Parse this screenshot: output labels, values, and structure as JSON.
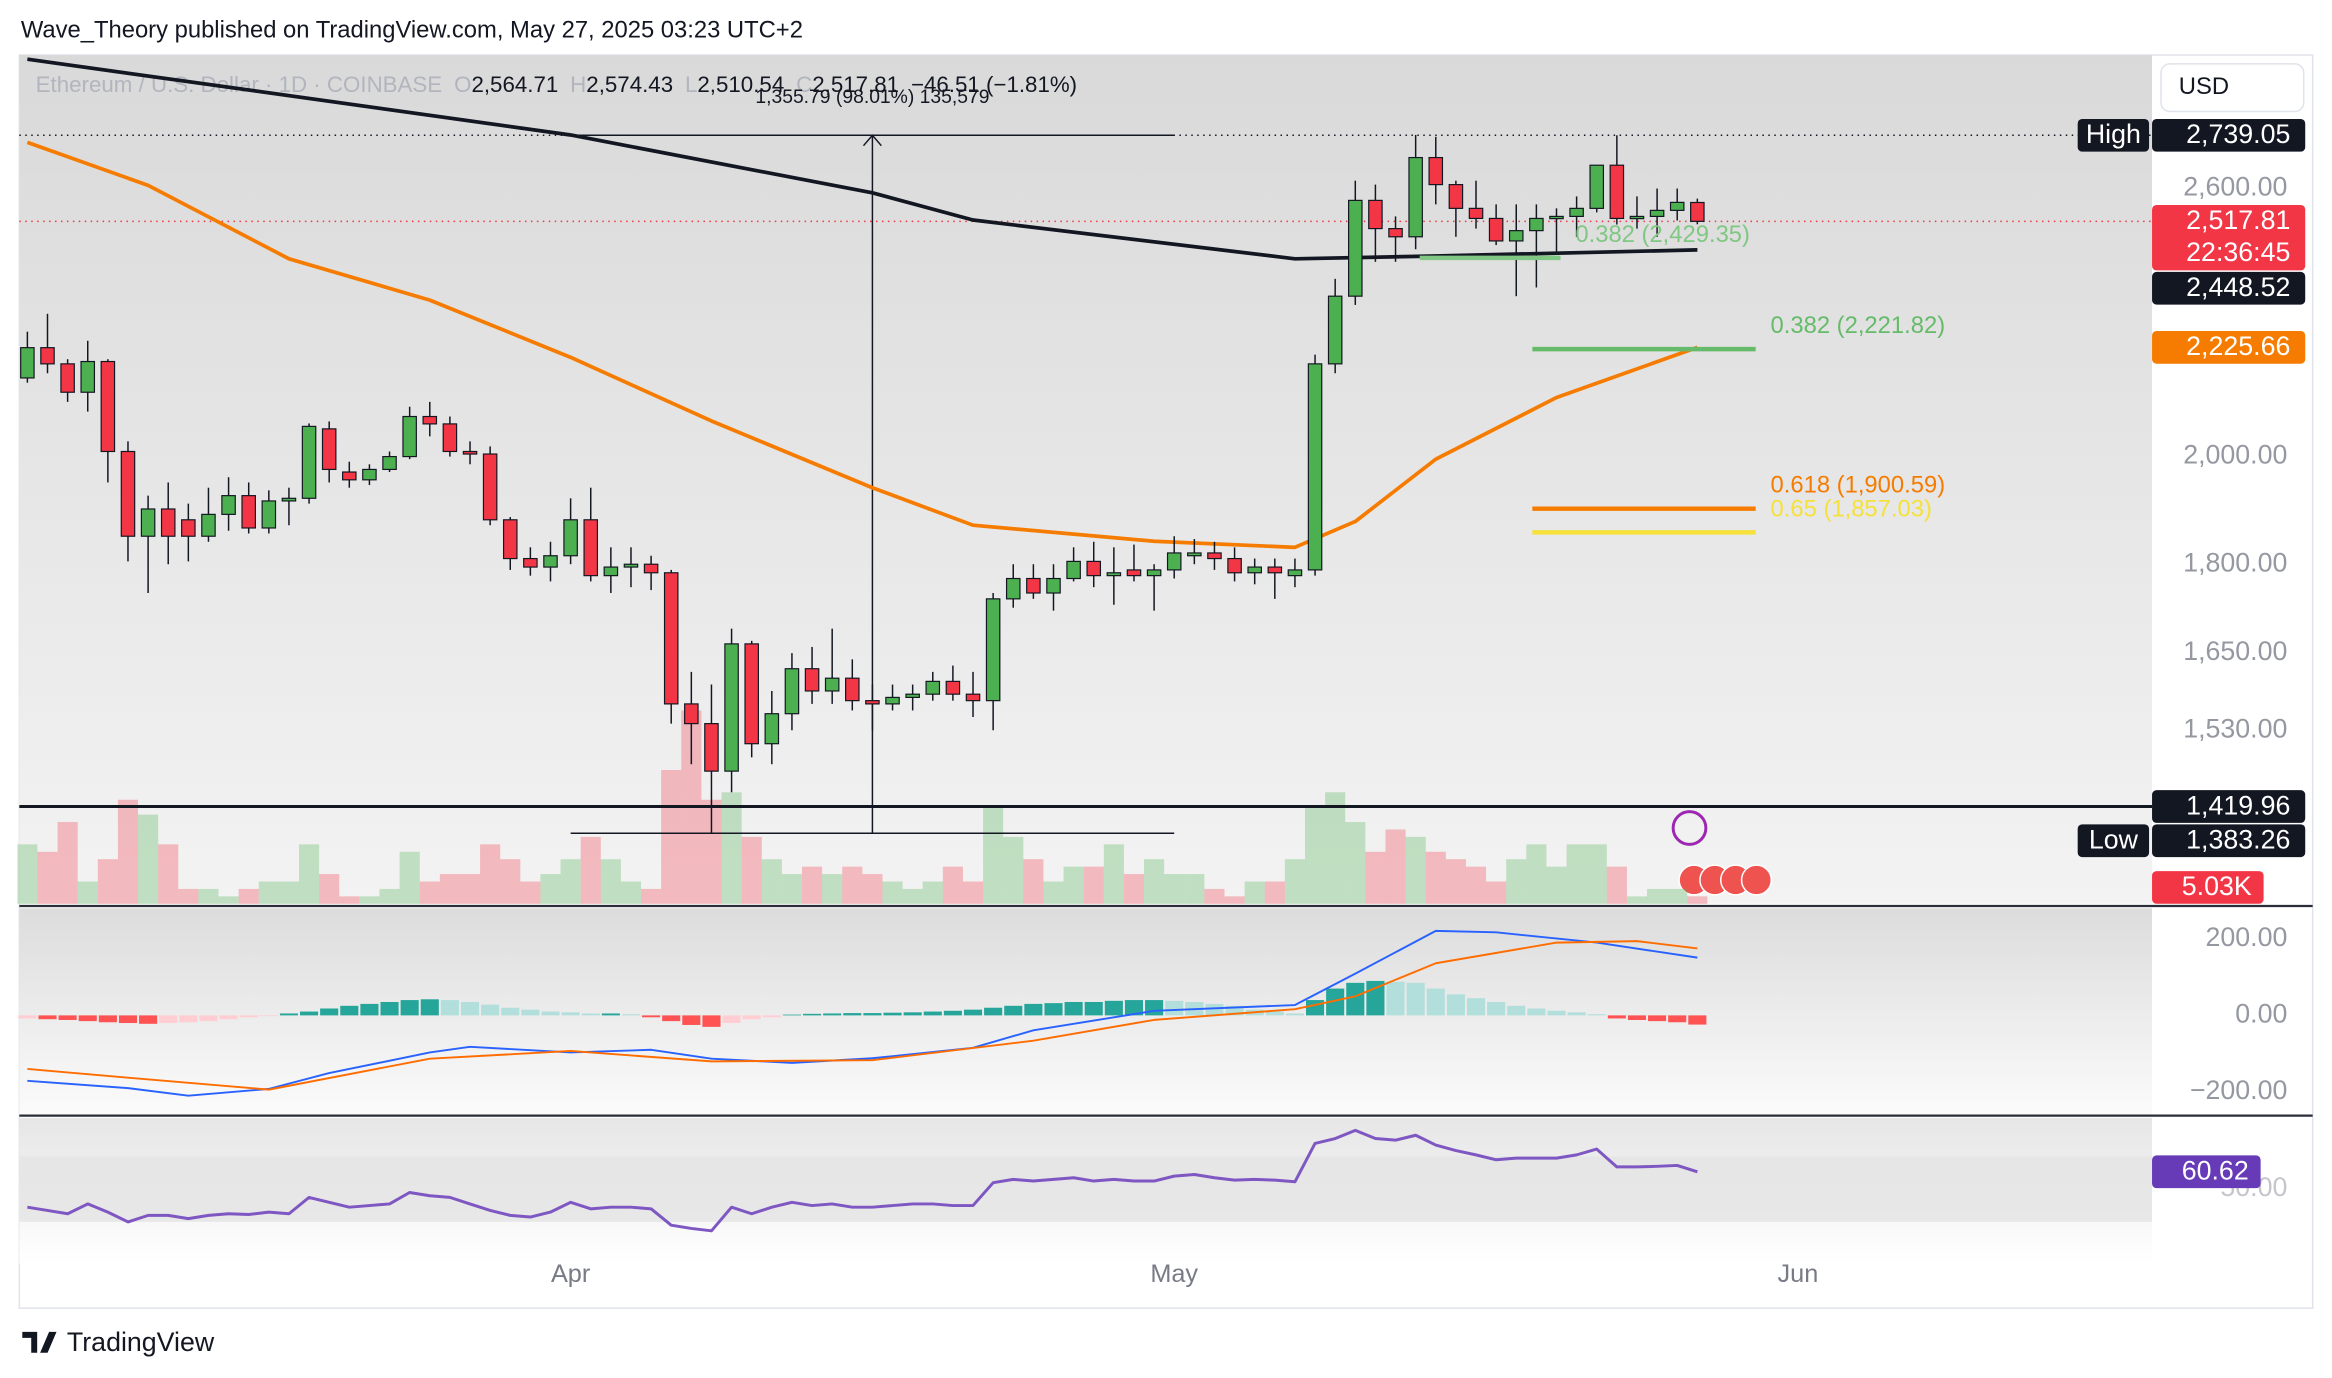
{
  "header": {
    "publisher": "Wave_Theory published on TradingView.com, May 27, 2025 03:23 UTC+2",
    "symbol": "Ethereum / U.S. Dollar · 1D · COINBASE",
    "ohlc": [
      {
        "key": "O",
        "value": "2,564.71"
      },
      {
        "key": "H",
        "value": "2,574.43"
      },
      {
        "key": "L",
        "value": "2,510.54"
      },
      {
        "key": "C",
        "value": "2,517.81"
      }
    ],
    "change": "−46.51 (−1.81%)"
  },
  "usd_button": "USD",
  "brand": "TradingView",
  "chart_data": [
    {
      "type": "candlestick",
      "log_scale": true,
      "up_color": "#4caf50",
      "down_color": "#f23645",
      "categories": [
        null,
        null,
        null,
        null,
        null,
        null,
        null,
        null,
        null,
        null,
        null,
        null,
        null,
        null,
        null,
        null,
        null,
        null,
        null,
        null,
        null,
        null,
        null,
        null,
        null,
        null,
        null,
        null,
        null,
        null,
        null,
        null,
        null,
        null,
        null,
        null,
        null,
        null,
        null,
        null,
        null,
        null,
        null,
        null,
        null,
        null,
        null,
        null,
        null,
        null,
        null,
        null,
        null,
        null,
        null,
        null,
        null,
        null,
        null,
        null,
        null,
        null,
        null,
        null,
        null,
        null,
        null,
        null,
        null,
        null,
        null,
        null,
        null,
        null,
        null,
        null,
        null,
        null,
        null,
        null,
        null,
        null,
        null,
        null
      ],
      "xlim": [
        -0.4,
        105.6
      ],
      "xticks": [
        {
          "value": 27,
          "label": "Apr"
        },
        {
          "value": 57,
          "label": "May"
        },
        {
          "value": 88,
          "label": "Jun"
        }
      ],
      "ylim": [
        1291,
        2963
      ],
      "yticks": [
        {
          "value": 1530,
          "label": "1,530.00"
        },
        {
          "value": 1650,
          "label": "1,650.00"
        },
        {
          "value": 1800,
          "label": "1,800.00"
        },
        {
          "value": 2000,
          "label": "2,000.00"
        },
        {
          "value": 2600,
          "label": "2,600.00"
        }
      ],
      "open": [
        2160,
        2225,
        2190,
        2130,
        2195,
        2010,
        1850,
        1900,
        1880,
        1850,
        1890,
        1925,
        1865,
        1915,
        1920,
        2055,
        1970,
        1955,
        1975,
        2000,
        2080,
        2065,
        2010,
        2005,
        1880,
        1810,
        1795,
        1815,
        1880,
        1780,
        1795,
        1800,
        1785,
        1570,
        1540,
        1470,
        1665,
        1510,
        1555,
        1625,
        1590,
        1610,
        1575,
        1570,
        1580,
        1585,
        1605,
        1585,
        1575,
        1740,
        1775,
        1750,
        1775,
        1805,
        1780,
        1790,
        1780,
        1790,
        1815,
        1820,
        1810,
        1785,
        1795,
        1780,
        1790,
        2190,
        2340,
        2570,
        2500,
        2480,
        2680,
        2610,
        2550,
        2525,
        2470,
        2495,
        2525,
        2530,
        2550,
        2660,
        2525,
        2530,
        2545,
        2564.71
      ],
      "high": [
        2260,
        2300,
        2200,
        2240,
        2200,
        2030,
        1925,
        1950,
        1910,
        1940,
        1960,
        1950,
        1935,
        1940,
        2066,
        2070,
        1990,
        1985,
        2010,
        2100,
        2110,
        2080,
        2030,
        2020,
        1885,
        1830,
        1840,
        1920,
        1940,
        1830,
        1830,
        1815,
        1790,
        1620,
        1600,
        1690,
        1670,
        1590,
        1650,
        1660,
        1690,
        1640,
        1600,
        1600,
        1600,
        1620,
        1630,
        1620,
        1750,
        1800,
        1800,
        1800,
        1830,
        1840,
        1830,
        1835,
        1800,
        1850,
        1845,
        1840,
        1830,
        1810,
        1810,
        1810,
        2210,
        2380,
        2620,
        2610,
        2530,
        2740,
        2735,
        2620,
        2620,
        2560,
        2560,
        2560,
        2550,
        2580,
        2660,
        2739.05,
        2580,
        2600,
        2600,
        2574.43
      ],
      "low": [
        2150,
        2170,
        2110,
        2090,
        1950,
        1805,
        1750,
        1800,
        1805,
        1840,
        1860,
        1855,
        1855,
        1870,
        1910,
        1950,
        1940,
        1945,
        1970,
        1995,
        2040,
        2000,
        1985,
        1870,
        1790,
        1780,
        1770,
        1800,
        1770,
        1750,
        1760,
        1755,
        1540,
        1480,
        1383.26,
        1440,
        1490,
        1480,
        1530,
        1570,
        1570,
        1560,
        1530,
        1560,
        1560,
        1575,
        1575,
        1550,
        1530,
        1725,
        1740,
        1720,
        1770,
        1760,
        1730,
        1770,
        1720,
        1775,
        1800,
        1790,
        1770,
        1765,
        1740,
        1760,
        1780,
        2170,
        2320,
        2420,
        2420,
        2450,
        2560,
        2480,
        2500,
        2460,
        2340,
        2360,
        2440,
        2480,
        2540,
        2510,
        2500,
        2480,
        2520,
        2510.54
      ],
      "close": [
        2225,
        2190,
        2130,
        2195,
        2010,
        1850,
        1900,
        1850,
        1850,
        1890,
        1925,
        1865,
        1915,
        1920,
        2060,
        1975,
        1955,
        1975,
        2000,
        2080,
        2065,
        2010,
        2005,
        1880,
        1810,
        1795,
        1815,
        1880,
        1780,
        1795,
        1800,
        1785,
        1570,
        1540,
        1470,
        1665,
        1510,
        1555,
        1625,
        1590,
        1610,
        1575,
        1570,
        1580,
        1585,
        1605,
        1585,
        1575,
        1740,
        1775,
        1750,
        1775,
        1805,
        1780,
        1785,
        1780,
        1790,
        1820,
        1820,
        1810,
        1785,
        1795,
        1785,
        1790,
        2190,
        2340,
        2570,
        2500,
        2480,
        2680,
        2610,
        2550,
        2525,
        2470,
        2495,
        2525,
        2530,
        2550,
        2660,
        2525,
        2530,
        2545,
        2565,
        2517.81
      ],
      "volume": {
        "ylim": [
          0,
          150
        ],
        "values": [
          40,
          35,
          55,
          15,
          30,
          70,
          60,
          40,
          10,
          10,
          5,
          10,
          15,
          15,
          40,
          20,
          5,
          5,
          10,
          35,
          15,
          20,
          20,
          40,
          30,
          15,
          20,
          30,
          45,
          30,
          15,
          10,
          90,
          130,
          70,
          75,
          45,
          30,
          20,
          25,
          20,
          25,
          20,
          15,
          10,
          15,
          25,
          15,
          65,
          45,
          30,
          15,
          25,
          25,
          40,
          20,
          30,
          20,
          20,
          10,
          5,
          15,
          15,
          30,
          65,
          75,
          55,
          35,
          50,
          45,
          35,
          30,
          25,
          15,
          30,
          40,
          25,
          40,
          40,
          25,
          5,
          10,
          10,
          5.03
        ],
        "badge": {
          "value": 5.03,
          "label": "5.03K",
          "color": "#f23645"
        }
      },
      "lines": [
        {
          "color": "#131722",
          "x": [
            0,
            27,
            42,
            47,
            63,
            70,
            83
          ],
          "values": [
            2951,
            2740,
            2589,
            2521,
            2427,
            2434,
            2448.52
          ]
        },
        {
          "color": "#f57c00",
          "x": [
            0,
            6,
            13,
            20,
            27,
            34,
            42,
            47,
            56,
            63,
            66,
            70,
            76,
            83
          ],
          "values": [
            2720,
            2608,
            2427,
            2331,
            2204,
            2071,
            1940,
            1870,
            1841,
            1830,
            1877,
            1995,
            2119,
            2225.66
          ]
        }
      ],
      "levels": [
        {
          "value": 2739.05,
          "style": "dotted",
          "color": "#131722"
        },
        {
          "value": 2517.81,
          "style": "dotted",
          "color": "#f23645"
        },
        {
          "value": 1419.96,
          "style": "solid",
          "color": "#131722"
        }
      ],
      "fib_levels": [
        {
          "text": "0.382 (2,429.35)",
          "value": 2429.35,
          "color": "#81c784"
        },
        {
          "text": "0.382 (2,221.82)",
          "value": 2221.82,
          "color": "#66bb6a"
        },
        {
          "text": "0.618 (1,900.59)",
          "value": 1900.59,
          "color": "#f57c00"
        },
        {
          "text": "0.65 (1,857.03)",
          "value": 1857.03,
          "color": "#f5e13a"
        }
      ],
      "measure": {
        "text": "1,355.79 (98.01%) 135,579",
        "low": 1383.26,
        "high": 2739.05
      },
      "price_badges": [
        {
          "value": 2739.05,
          "label": "2,739.05",
          "tag": "High",
          "color": "#131722"
        },
        {
          "value": 2517.81,
          "label": "2,517.81",
          "countdown": "22:36:45",
          "color": "#f23645"
        },
        {
          "value": 2448.52,
          "label": "2,448.52",
          "color": "#131722"
        },
        {
          "value": 2225.66,
          "label": "2,225.66",
          "color": "#f57c00"
        },
        {
          "value": 1419.96,
          "label": "1,419.96",
          "color": "#131722"
        },
        {
          "value": 1383.26,
          "label": "1,383.26",
          "tag": "Low",
          "color": "#131722"
        }
      ]
    },
    {
      "type": "macd",
      "ylim": [
        -260,
        276
      ],
      "yticks": [
        {
          "value": -200,
          "label": "−200.00"
        },
        {
          "value": 0,
          "label": "0.00"
        },
        {
          "value": 200,
          "label": "200.00"
        }
      ],
      "colors": {
        "up": "#26a69a",
        "up_fading": "#b2dfdb",
        "down": "#ff5252",
        "down_fading": "#ffcdd2"
      },
      "histogram": [
        -8,
        -10,
        -12,
        -15,
        -18,
        -20,
        -22,
        -20,
        -18,
        -15,
        -10,
        -5,
        -2,
        5,
        10,
        18,
        25,
        30,
        35,
        40,
        42,
        40,
        35,
        28,
        20,
        15,
        10,
        8,
        5,
        5,
        3,
        -5,
        -15,
        -25,
        -30,
        -20,
        -10,
        -5,
        2,
        4,
        5,
        6,
        6,
        7,
        8,
        10,
        12,
        15,
        20,
        25,
        30,
        32,
        35,
        35,
        38,
        40,
        40,
        38,
        35,
        30,
        25,
        15,
        10,
        5,
        40,
        70,
        85,
        90,
        88,
        85,
        70,
        55,
        45,
        35,
        25,
        18,
        12,
        8,
        3,
        -8,
        -12,
        -15,
        -18,
        -24
      ],
      "series": [
        {
          "color": "#2962ff",
          "x": [
            0,
            5,
            8,
            12,
            15,
            20,
            22,
            27,
            31,
            34,
            38,
            42,
            47,
            50,
            56,
            63,
            66,
            70,
            73,
            78,
            83
          ],
          "values": [
            -171,
            -190,
            -210,
            -192,
            -151,
            -97,
            -82,
            -97,
            -90,
            -113,
            -124,
            -112,
            -85,
            -39,
            12,
            27,
            109,
            221,
            217,
            190,
            151
          ]
        },
        {
          "color": "#ff6d00",
          "x": [
            0,
            5,
            12,
            20,
            27,
            34,
            42,
            50,
            56,
            63,
            66,
            70,
            76,
            80,
            83
          ],
          "values": [
            -140,
            -163,
            -194,
            -113,
            -93,
            -120,
            -117,
            -66,
            -12,
            16,
            50,
            136,
            190,
            194,
            175
          ]
        }
      ]
    },
    {
      "type": "line",
      "color": "#7e57c2",
      "ylim": [
        4.5,
        93.6
      ],
      "band": [
        30,
        70
      ],
      "yticks": [
        {
          "value": 50,
          "label": "50.00"
        }
      ],
      "values": [
        39,
        37,
        35,
        41,
        36,
        30,
        34,
        34,
        32,
        34,
        35,
        34.5,
        36,
        35,
        45,
        42,
        39,
        40,
        41,
        48,
        46,
        45,
        41,
        37,
        34,
        33,
        36,
        42,
        38,
        39,
        39,
        38,
        28,
        26,
        24.5,
        39,
        35,
        39,
        42,
        40,
        41,
        39,
        39,
        40,
        41,
        41,
        40,
        40,
        54,
        56,
        55,
        56,
        57,
        55,
        56,
        55,
        55,
        58,
        59,
        57,
        55.5,
        56,
        55.5,
        54.5,
        78,
        81,
        86,
        81,
        80,
        83,
        77,
        73.6,
        71,
        68,
        69,
        69,
        69,
        71,
        74.5,
        63.6,
        63.6,
        64,
        64.5,
        60.62
      ],
      "badge": {
        "value": 60.62,
        "label": "60.62",
        "color": "#673ab7"
      }
    }
  ]
}
